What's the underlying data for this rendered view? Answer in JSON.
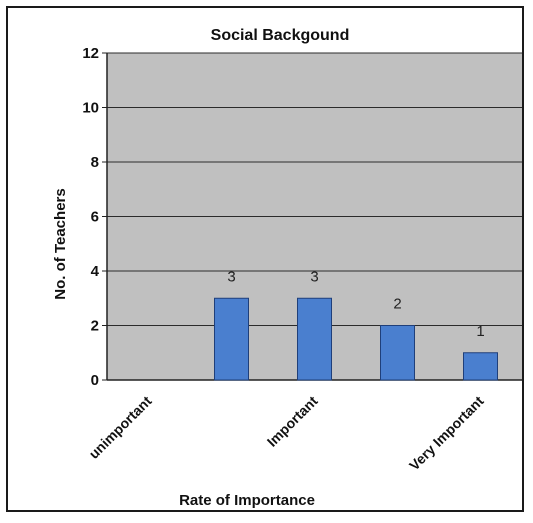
{
  "chart_data": {
    "type": "bar",
    "title": "Social Backgound",
    "xlabel": "Rate of Importance",
    "ylabel": "No. of Teachers",
    "categories": [
      "unimportant",
      "",
      "Important",
      "",
      "Very Important"
    ],
    "values": [
      0,
      3,
      3,
      2,
      1
    ],
    "data_labels": [
      "",
      "3",
      "3",
      "2",
      "1"
    ],
    "ylim": [
      0,
      12
    ],
    "yticks": [
      0,
      2,
      4,
      6,
      8,
      10,
      12
    ],
    "grid": true,
    "legend": "none",
    "bar_color": "#4a7fcf",
    "plot_background": "#c0c0c0"
  }
}
